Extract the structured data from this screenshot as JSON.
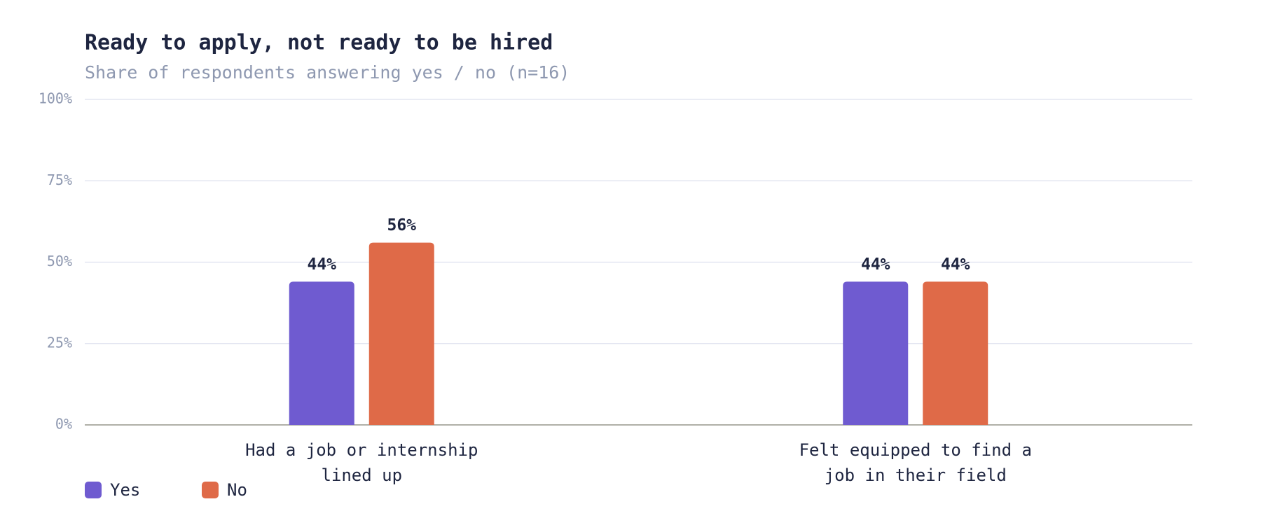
{
  "chart_data": {
    "type": "bar",
    "title": "Ready to apply, not ready to be hired",
    "subtitle": "Share of respondents answering yes / no (n=16)",
    "categories": [
      "Had a job or internship lined up",
      "Felt equipped to find a job in their field"
    ],
    "series": [
      {
        "name": "Yes",
        "color": "#6f5bd0",
        "values": [
          44,
          44
        ],
        "value_labels": [
          "44%",
          "44%"
        ]
      },
      {
        "name": "No",
        "color": "#df6a48",
        "values": [
          56,
          44
        ],
        "value_labels": [
          "56%",
          "44%"
        ]
      }
    ],
    "ylim": [
      0,
      100
    ],
    "yticks": [
      {
        "value": 0,
        "label": "0%"
      },
      {
        "value": 25,
        "label": "25%"
      },
      {
        "value": 50,
        "label": "50%"
      },
      {
        "value": 75,
        "label": "75%"
      },
      {
        "value": 100,
        "label": "100%"
      }
    ],
    "grid": true,
    "legend": "bottom-left"
  }
}
